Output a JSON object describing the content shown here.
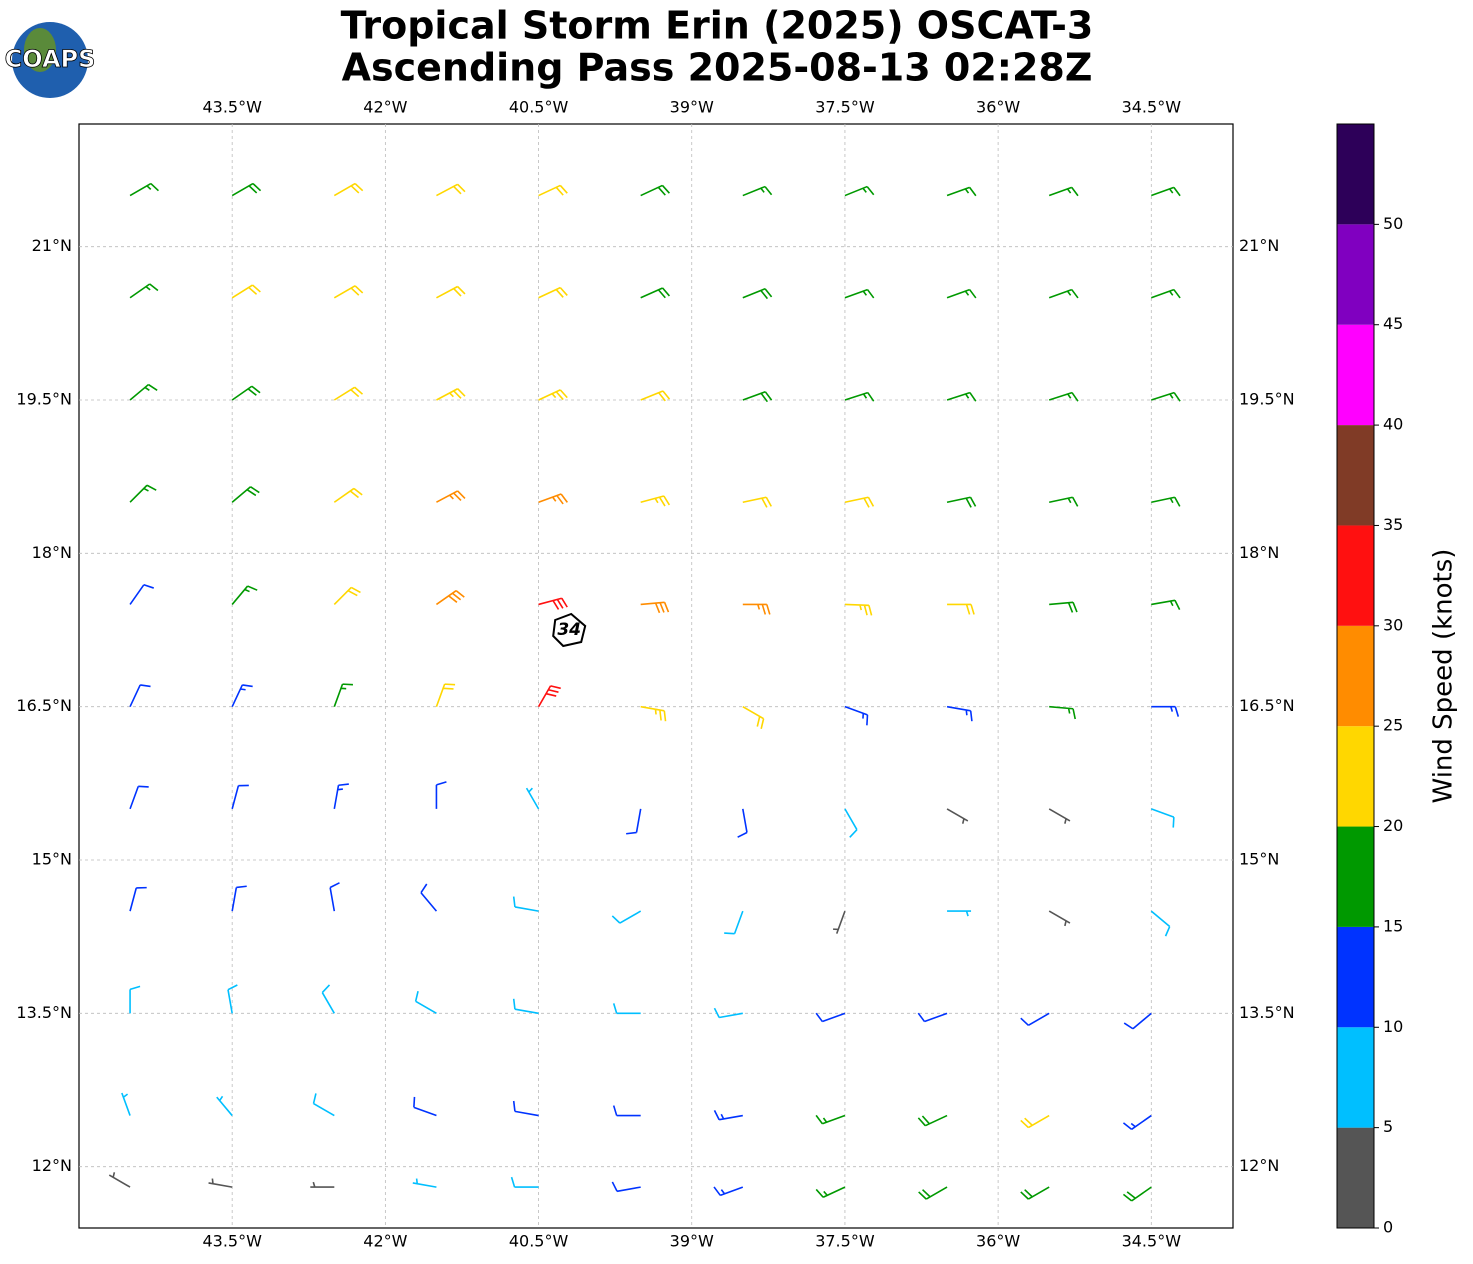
{
  "chart_data": {
    "type": "barbs",
    "title": [
      "Tropical Storm Erin (2025) OSCAT-3",
      "Ascending Pass 2025-08-13 02:28Z"
    ],
    "logo": "COAPS",
    "xlim": [
      -45.0,
      -33.7
    ],
    "ylim": [
      11.4,
      22.2
    ],
    "xticks": [
      {
        "value": -43.5,
        "label": "43.5°W"
      },
      {
        "value": -42,
        "label": "42°W"
      },
      {
        "value": -40.5,
        "label": "40.5°W"
      },
      {
        "value": -39,
        "label": "39°W"
      },
      {
        "value": -37.5,
        "label": "37.5°W"
      },
      {
        "value": -36,
        "label": "36°W"
      },
      {
        "value": -34.5,
        "label": "34.5°W"
      }
    ],
    "yticks": [
      {
        "value": 12,
        "label": "12°N"
      },
      {
        "value": 13.5,
        "label": "13.5°N"
      },
      {
        "value": 15,
        "label": "15°N"
      },
      {
        "value": 16.5,
        "label": "16.5°N"
      },
      {
        "value": 18,
        "label": "18°N"
      },
      {
        "value": 19.5,
        "label": "19.5°N"
      },
      {
        "value": 21,
        "label": "21°N"
      }
    ],
    "grid": true,
    "center": {
      "label": "34",
      "lon": -40.2,
      "lat": 17.25
    },
    "lon": [
      -44.5,
      -43.5,
      -42.5,
      -41.5,
      -40.5,
      -39.5,
      -38.5,
      -37.5,
      -36.5,
      -35.5,
      -34.5
    ],
    "lat": [
      21.5,
      20.5,
      19.5,
      18.5,
      17.5,
      16.5,
      15.5,
      14.5,
      13.5,
      12.5,
      11.8
    ],
    "speed": [
      [
        17,
        19,
        21,
        21,
        20,
        18,
        17,
        17,
        17,
        17,
        17
      ],
      [
        17,
        21,
        22,
        22,
        21,
        19,
        18,
        17,
        16,
        16,
        16
      ],
      [
        17,
        19,
        22,
        23,
        23,
        22,
        19,
        17,
        16,
        17,
        17
      ],
      [
        16,
        18,
        21,
        25,
        27,
        24,
        22,
        21,
        19,
        17,
        17
      ],
      [
        12,
        16,
        21,
        28,
        32,
        28,
        26,
        24,
        20,
        18,
        16
      ],
      [
        11,
        13,
        17,
        22,
        32,
        24,
        20,
        14,
        13,
        15,
        14
      ],
      [
        10,
        12,
        13,
        11,
        6,
        11,
        12,
        9,
        4,
        4,
        8
      ],
      [
        10,
        11,
        11,
        12,
        9,
        9,
        8,
        4,
        6,
        4,
        8
      ],
      [
        8,
        9,
        8,
        9,
        8,
        8,
        8,
        10,
        12,
        12,
        11
      ],
      [
        7,
        6,
        8,
        10,
        11,
        12,
        13,
        15,
        18,
        20,
        14
      ],
      [
        4,
        4,
        3,
        6,
        8,
        10,
        14,
        16,
        18,
        18,
        18
      ]
    ],
    "direction": [
      [
        60,
        60,
        60,
        62,
        65,
        65,
        68,
        68,
        70,
        70,
        70
      ],
      [
        55,
        58,
        60,
        62,
        65,
        66,
        68,
        70,
        70,
        70,
        70
      ],
      [
        50,
        55,
        58,
        62,
        65,
        68,
        70,
        72,
        72,
        72,
        72
      ],
      [
        45,
        50,
        55,
        62,
        70,
        75,
        78,
        78,
        78,
        78,
        78
      ],
      [
        35,
        40,
        45,
        55,
        75,
        85,
        90,
        92,
        90,
        85,
        80
      ],
      [
        25,
        25,
        20,
        20,
        30,
        100,
        120,
        110,
        100,
        95,
        90
      ],
      [
        20,
        15,
        10,
        0,
        330,
        190,
        170,
        150,
        120,
        120,
        110
      ],
      [
        15,
        10,
        350,
        320,
        280,
        240,
        200,
        200,
        90,
        120,
        130
      ],
      [
        360,
        350,
        330,
        300,
        280,
        270,
        260,
        250,
        250,
        240,
        230
      ],
      [
        340,
        320,
        300,
        290,
        280,
        270,
        260,
        250,
        245,
        240,
        235
      ],
      [
        300,
        280,
        270,
        280,
        270,
        260,
        250,
        245,
        240,
        240,
        235
      ]
    ],
    "colorbar": {
      "label": "Wind Speed (knots)",
      "bounds": [
        0,
        5,
        10,
        15,
        20,
        25,
        30,
        35,
        40,
        45,
        50,
        55
      ],
      "colors": [
        "#555555",
        "#00bfff",
        "#0033ff",
        "#009900",
        "#ffd700",
        "#ff8c00",
        "#ff1010",
        "#803b26",
        "#ff00ff",
        "#8000c0",
        "#2d0059"
      ],
      "ticks": [
        0,
        5,
        10,
        15,
        20,
        25,
        30,
        35,
        40,
        45,
        50
      ]
    }
  }
}
